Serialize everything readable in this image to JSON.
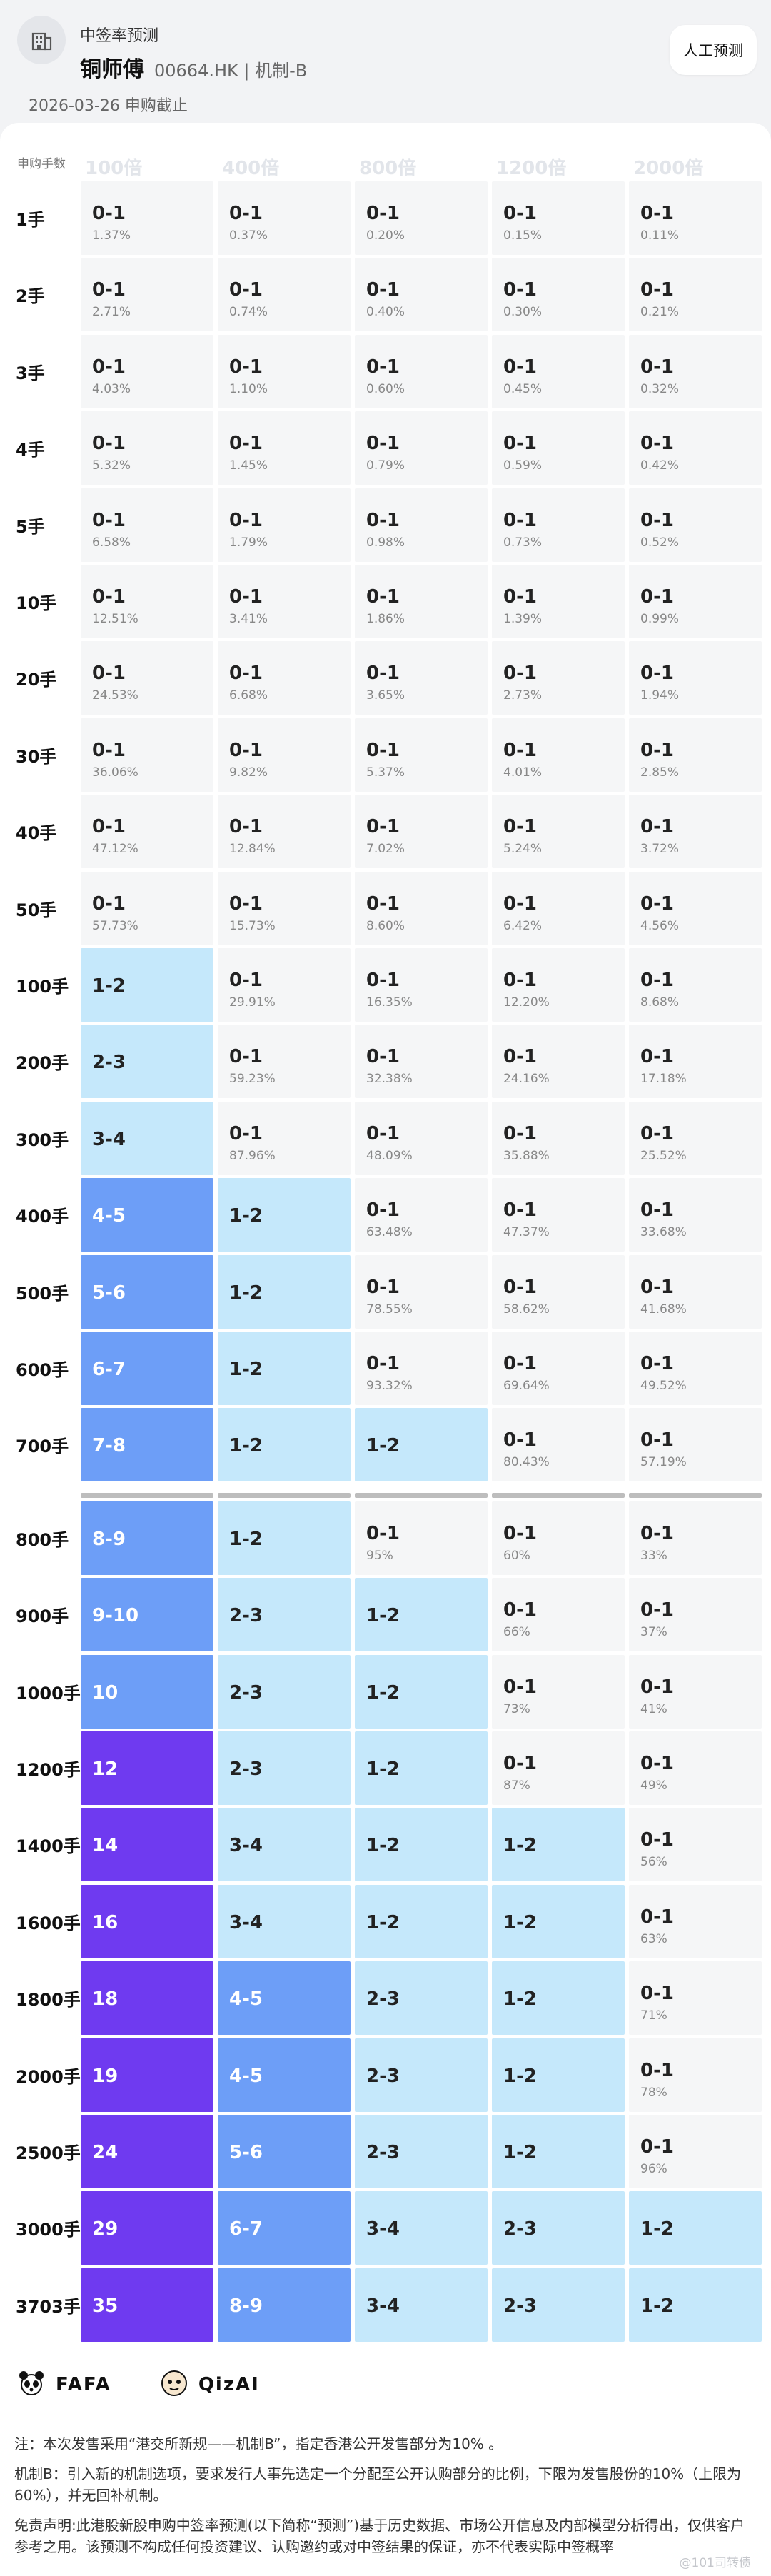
{
  "header": {
    "label": "中签率预测",
    "stock_name": "铜师傅",
    "stock_meta": "00664.HK | 机制-B",
    "date_line": "2026-03-26 申购截止",
    "manual_button": "人工预测"
  },
  "table": {
    "corner_label": "申购手数",
    "columns": [
      "100倍",
      "400倍",
      "800倍",
      "1200倍",
      "2000倍"
    ],
    "rows": [
      {
        "label": "1手",
        "cells": [
          {
            "main": "0-1",
            "sub": "1.37%"
          },
          {
            "main": "0-1",
            "sub": "0.37%"
          },
          {
            "main": "0-1",
            "sub": "0.20%"
          },
          {
            "main": "0-1",
            "sub": "0.15%"
          },
          {
            "main": "0-1",
            "sub": "0.11%"
          }
        ]
      },
      {
        "label": "2手",
        "cells": [
          {
            "main": "0-1",
            "sub": "2.71%"
          },
          {
            "main": "0-1",
            "sub": "0.74%"
          },
          {
            "main": "0-1",
            "sub": "0.40%"
          },
          {
            "main": "0-1",
            "sub": "0.30%"
          },
          {
            "main": "0-1",
            "sub": "0.21%"
          }
        ]
      },
      {
        "label": "3手",
        "cells": [
          {
            "main": "0-1",
            "sub": "4.03%"
          },
          {
            "main": "0-1",
            "sub": "1.10%"
          },
          {
            "main": "0-1",
            "sub": "0.60%"
          },
          {
            "main": "0-1",
            "sub": "0.45%"
          },
          {
            "main": "0-1",
            "sub": "0.32%"
          }
        ]
      },
      {
        "label": "4手",
        "cells": [
          {
            "main": "0-1",
            "sub": "5.32%"
          },
          {
            "main": "0-1",
            "sub": "1.45%"
          },
          {
            "main": "0-1",
            "sub": "0.79%"
          },
          {
            "main": "0-1",
            "sub": "0.59%"
          },
          {
            "main": "0-1",
            "sub": "0.42%"
          }
        ]
      },
      {
        "label": "5手",
        "cells": [
          {
            "main": "0-1",
            "sub": "6.58%"
          },
          {
            "main": "0-1",
            "sub": "1.79%"
          },
          {
            "main": "0-1",
            "sub": "0.98%"
          },
          {
            "main": "0-1",
            "sub": "0.73%"
          },
          {
            "main": "0-1",
            "sub": "0.52%"
          }
        ]
      },
      {
        "label": "10手",
        "cells": [
          {
            "main": "0-1",
            "sub": "12.51%"
          },
          {
            "main": "0-1",
            "sub": "3.41%"
          },
          {
            "main": "0-1",
            "sub": "1.86%"
          },
          {
            "main": "0-1",
            "sub": "1.39%"
          },
          {
            "main": "0-1",
            "sub": "0.99%"
          }
        ]
      },
      {
        "label": "20手",
        "cells": [
          {
            "main": "0-1",
            "sub": "24.53%"
          },
          {
            "main": "0-1",
            "sub": "6.68%"
          },
          {
            "main": "0-1",
            "sub": "3.65%"
          },
          {
            "main": "0-1",
            "sub": "2.73%"
          },
          {
            "main": "0-1",
            "sub": "1.94%"
          }
        ]
      },
      {
        "label": "30手",
        "cells": [
          {
            "main": "0-1",
            "sub": "36.06%"
          },
          {
            "main": "0-1",
            "sub": "9.82%"
          },
          {
            "main": "0-1",
            "sub": "5.37%"
          },
          {
            "main": "0-1",
            "sub": "4.01%"
          },
          {
            "main": "0-1",
            "sub": "2.85%"
          }
        ]
      },
      {
        "label": "40手",
        "cells": [
          {
            "main": "0-1",
            "sub": "47.12%"
          },
          {
            "main": "0-1",
            "sub": "12.84%"
          },
          {
            "main": "0-1",
            "sub": "7.02%"
          },
          {
            "main": "0-1",
            "sub": "5.24%"
          },
          {
            "main": "0-1",
            "sub": "3.72%"
          }
        ]
      },
      {
        "label": "50手",
        "cells": [
          {
            "main": "0-1",
            "sub": "57.73%"
          },
          {
            "main": "0-1",
            "sub": "15.73%"
          },
          {
            "main": "0-1",
            "sub": "8.60%"
          },
          {
            "main": "0-1",
            "sub": "6.42%"
          },
          {
            "main": "0-1",
            "sub": "4.56%"
          }
        ]
      },
      {
        "label": "100手",
        "cells": [
          {
            "main": "1-2",
            "level": 1
          },
          {
            "main": "0-1",
            "sub": "29.91%"
          },
          {
            "main": "0-1",
            "sub": "16.35%"
          },
          {
            "main": "0-1",
            "sub": "12.20%"
          },
          {
            "main": "0-1",
            "sub": "8.68%"
          }
        ]
      },
      {
        "label": "200手",
        "cells": [
          {
            "main": "2-3",
            "level": 1
          },
          {
            "main": "0-1",
            "sub": "59.23%"
          },
          {
            "main": "0-1",
            "sub": "32.38%"
          },
          {
            "main": "0-1",
            "sub": "24.16%"
          },
          {
            "main": "0-1",
            "sub": "17.18%"
          }
        ]
      },
      {
        "label": "300手",
        "cells": [
          {
            "main": "3-4",
            "level": 1
          },
          {
            "main": "0-1",
            "sub": "87.96%"
          },
          {
            "main": "0-1",
            "sub": "48.09%"
          },
          {
            "main": "0-1",
            "sub": "35.88%"
          },
          {
            "main": "0-1",
            "sub": "25.52%"
          }
        ]
      },
      {
        "label": "400手",
        "cells": [
          {
            "main": "4-5",
            "level": 2
          },
          {
            "main": "1-2",
            "level": 1
          },
          {
            "main": "0-1",
            "sub": "63.48%"
          },
          {
            "main": "0-1",
            "sub": "47.37%"
          },
          {
            "main": "0-1",
            "sub": "33.68%"
          }
        ]
      },
      {
        "label": "500手",
        "cells": [
          {
            "main": "5-6",
            "level": 2
          },
          {
            "main": "1-2",
            "level": 1
          },
          {
            "main": "0-1",
            "sub": "78.55%"
          },
          {
            "main": "0-1",
            "sub": "58.62%"
          },
          {
            "main": "0-1",
            "sub": "41.68%"
          }
        ]
      },
      {
        "label": "600手",
        "cells": [
          {
            "main": "6-7",
            "level": 2
          },
          {
            "main": "1-2",
            "level": 1
          },
          {
            "main": "0-1",
            "sub": "93.32%"
          },
          {
            "main": "0-1",
            "sub": "69.64%"
          },
          {
            "main": "0-1",
            "sub": "49.52%"
          }
        ]
      },
      {
        "label": "700手",
        "cells": [
          {
            "main": "7-8",
            "level": 2
          },
          {
            "main": "1-2",
            "level": 1
          },
          {
            "main": "1-2",
            "level": 1
          },
          {
            "main": "0-1",
            "sub": "80.43%"
          },
          {
            "main": "0-1",
            "sub": "57.19%"
          }
        ]
      },
      {
        "label": "800手",
        "cells": [
          {
            "main": "8-9",
            "level": 2
          },
          {
            "main": "1-2",
            "level": 1
          },
          {
            "main": "0-1",
            "sub": "95%"
          },
          {
            "main": "0-1",
            "sub": "60%"
          },
          {
            "main": "0-1",
            "sub": "33%"
          }
        ]
      },
      {
        "label": "900手",
        "cells": [
          {
            "main": "9-10",
            "level": 2
          },
          {
            "main": "2-3",
            "level": 1
          },
          {
            "main": "1-2",
            "level": 1
          },
          {
            "main": "0-1",
            "sub": "66%"
          },
          {
            "main": "0-1",
            "sub": "37%"
          }
        ]
      },
      {
        "label": "1000手",
        "cells": [
          {
            "main": "10",
            "level": 2
          },
          {
            "main": "2-3",
            "level": 1
          },
          {
            "main": "1-2",
            "level": 1
          },
          {
            "main": "0-1",
            "sub": "73%"
          },
          {
            "main": "0-1",
            "sub": "41%"
          }
        ]
      },
      {
        "label": "1200手",
        "cells": [
          {
            "main": "12",
            "level": 3
          },
          {
            "main": "2-3",
            "level": 1
          },
          {
            "main": "1-2",
            "level": 1
          },
          {
            "main": "0-1",
            "sub": "87%"
          },
          {
            "main": "0-1",
            "sub": "49%"
          }
        ]
      },
      {
        "label": "1400手",
        "cells": [
          {
            "main": "14",
            "level": 3
          },
          {
            "main": "3-4",
            "level": 1
          },
          {
            "main": "1-2",
            "level": 1
          },
          {
            "main": "1-2",
            "level": 1
          },
          {
            "main": "0-1",
            "sub": "56%"
          }
        ]
      },
      {
        "label": "1600手",
        "cells": [
          {
            "main": "16",
            "level": 3
          },
          {
            "main": "3-4",
            "level": 1
          },
          {
            "main": "1-2",
            "level": 1
          },
          {
            "main": "1-2",
            "level": 1
          },
          {
            "main": "0-1",
            "sub": "63%"
          }
        ]
      },
      {
        "label": "1800手",
        "cells": [
          {
            "main": "18",
            "level": 3
          },
          {
            "main": "4-5",
            "level": 2
          },
          {
            "main": "2-3",
            "level": 1
          },
          {
            "main": "1-2",
            "level": 1
          },
          {
            "main": "0-1",
            "sub": "71%"
          }
        ]
      },
      {
        "label": "2000手",
        "cells": [
          {
            "main": "19",
            "level": 3
          },
          {
            "main": "4-5",
            "level": 2
          },
          {
            "main": "2-3",
            "level": 1
          },
          {
            "main": "1-2",
            "level": 1
          },
          {
            "main": "0-1",
            "sub": "78%"
          }
        ]
      },
      {
        "label": "2500手",
        "cells": [
          {
            "main": "24",
            "level": 3
          },
          {
            "main": "5-6",
            "level": 2
          },
          {
            "main": "2-3",
            "level": 1
          },
          {
            "main": "1-2",
            "level": 1
          },
          {
            "main": "0-1",
            "sub": "96%"
          }
        ]
      },
      {
        "label": "3000手",
        "cells": [
          {
            "main": "29",
            "level": 3
          },
          {
            "main": "6-7",
            "level": 2
          },
          {
            "main": "3-4",
            "level": 1
          },
          {
            "main": "2-3",
            "level": 1
          },
          {
            "main": "1-2",
            "level": 1
          }
        ]
      },
      {
        "label": "3703手",
        "cells": [
          {
            "main": "35",
            "level": 3
          },
          {
            "main": "8-9",
            "level": 2
          },
          {
            "main": "3-4",
            "level": 1
          },
          {
            "main": "2-3",
            "level": 1
          },
          {
            "main": "1-2",
            "level": 1
          }
        ]
      }
    ]
  },
  "colors": {
    "level0": "#f5f6f7",
    "level1": "#c5e8fb",
    "level2": "#6d9ef7",
    "level3": "#6f3af0"
  },
  "footer": {
    "brand1": "FAFA",
    "brand2": "QizAI",
    "note1": "注：本次发售采用“港交所新规——机制B”，指定香港公开发售部分为10% 。",
    "note2": "机制B：引入新的机制选项，要求发行人事先选定一个分配至公开认购部分的比例，下限为发售股份的10%（上限为60%），并无回补机制。",
    "note3": "免责声明:此港股新股申购中签率预测(以下简称“预测”)基于历史数据、市场公开信息及内部模型分析得出，仅供客户参考之用。该预测不构成任何投资建议、认购邀约或对中签结果的保证，亦不代表实际中签概率",
    "watermark": "@101司转债"
  }
}
